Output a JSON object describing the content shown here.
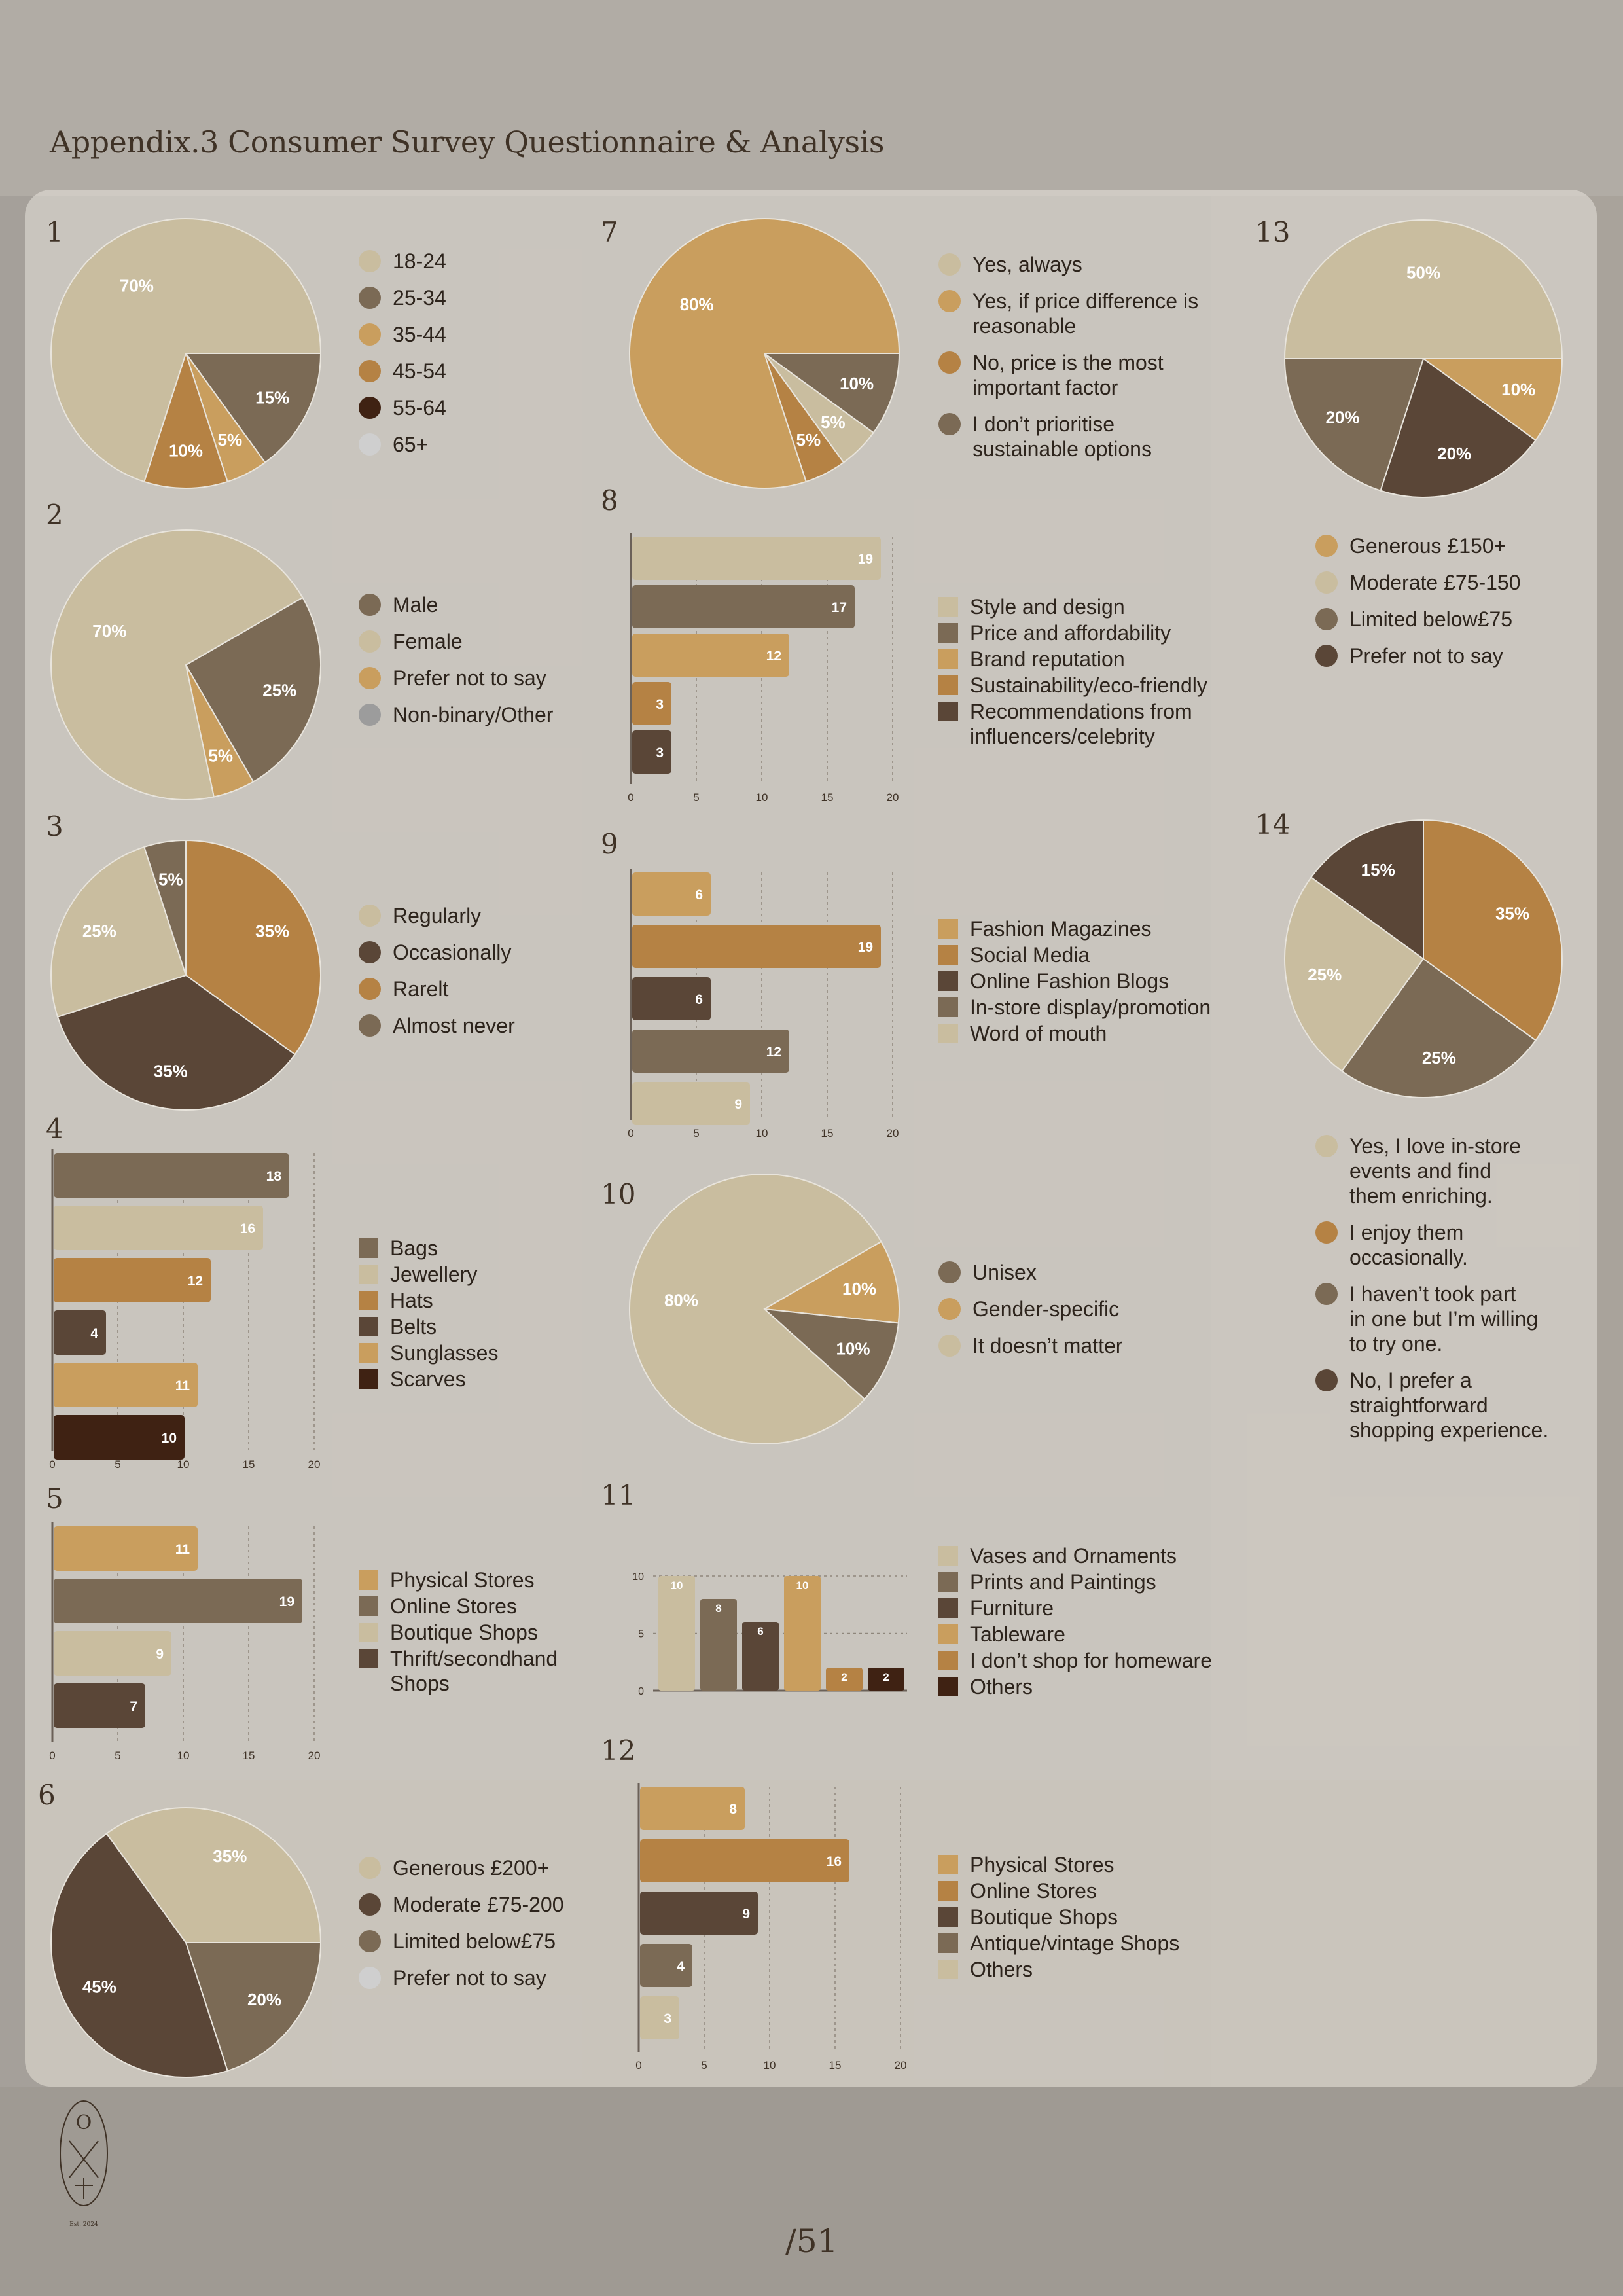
{
  "title": "Appendix.3 Consumer Survey Questionnaire & Analysis",
  "page_number": "/51",
  "logo": {
    "text": "OXAT",
    "tagline": "Est. 2024"
  },
  "colors": {
    "beige": "#c9bd9f",
    "taupe": "#7b6a55",
    "tan": "#c99e5e",
    "copper": "#b58244",
    "brown": "#5a4637",
    "dark": "#3f2213",
    "lightgrey": "#cfcfcf",
    "grey": "#9c9c9c"
  },
  "chart_data": [
    {
      "id": "1",
      "type": "pie",
      "labels": [
        "18-24",
        "25-34",
        "35-44",
        "45-54",
        "55-64",
        "65+"
      ],
      "values": [
        70,
        15,
        5,
        10,
        0,
        0
      ],
      "colors": [
        "#c9bd9f",
        "#7b6a55",
        "#c99e5e",
        "#b58244",
        "#3f2213",
        "#cfcfcf"
      ]
    },
    {
      "id": "2",
      "type": "pie",
      "labels": [
        "Male",
        "Female",
        "Prefer not to say",
        "Non-binary/Other"
      ],
      "values": [
        25,
        70,
        5,
        0
      ],
      "colors": [
        "#7b6a55",
        "#c9bd9f",
        "#c99e5e",
        "#9c9c9c"
      ]
    },
    {
      "id": "3",
      "type": "pie",
      "labels": [
        "Regularly",
        "Occasionally",
        "Rarelt",
        "Almost never"
      ],
      "values": [
        25,
        35,
        35,
        5
      ],
      "colors": [
        "#c9bd9f",
        "#5a4637",
        "#b58244",
        "#7b6a55"
      ]
    },
    {
      "id": "4",
      "type": "bar",
      "orientation": "horizontal",
      "categories": [
        "Bags",
        "Jewellery",
        "Hats",
        "Belts",
        "Sunglasses",
        "Scarves"
      ],
      "values": [
        18,
        16,
        12,
        4,
        11,
        10
      ],
      "xlim": [
        0,
        20
      ],
      "ticks": [
        0,
        5,
        10,
        15,
        20
      ],
      "colors": [
        "#7b6a55",
        "#c9bd9f",
        "#b58244",
        "#5a4637",
        "#c99e5e",
        "#3f2213"
      ]
    },
    {
      "id": "5",
      "type": "bar",
      "orientation": "horizontal",
      "categories": [
        "Physical Stores",
        "Online Stores",
        "Boutique Shops",
        "Thrift/secondhand\nShops"
      ],
      "values": [
        11,
        19,
        9,
        7
      ],
      "xlim": [
        0,
        20
      ],
      "ticks": [
        0,
        5,
        10,
        15,
        20
      ],
      "colors": [
        "#c99e5e",
        "#7b6a55",
        "#c9bd9f",
        "#5a4637"
      ]
    },
    {
      "id": "6",
      "type": "pie",
      "labels": [
        "Generous £200+",
        "Moderate £75-200",
        "Limited below£75",
        "Prefer not to say"
      ],
      "values": [
        35,
        45,
        20,
        0
      ],
      "colors": [
        "#c9bd9f",
        "#5a4637",
        "#7b6a55",
        "#cfcfcf"
      ]
    },
    {
      "id": "7",
      "type": "pie",
      "labels": [
        "Yes, always",
        "Yes, if price difference is\nreasonable",
        "No, price is the most\nimportant factor",
        "I don’t prioritise\nsustainable options"
      ],
      "values": [
        5,
        80,
        5,
        10
      ],
      "colors": [
        "#c9bd9f",
        "#c99e5e",
        "#b58244",
        "#7b6a55"
      ]
    },
    {
      "id": "8",
      "type": "bar",
      "orientation": "horizontal",
      "categories": [
        "Style and design",
        "Price and affordability",
        "Brand reputation",
        "Sustainability/eco-friendly",
        "Recommendations from\ninfluencers/celebrity"
      ],
      "values": [
        19,
        17,
        12,
        3,
        3
      ],
      "xlim": [
        0,
        20
      ],
      "ticks": [
        0,
        5,
        10,
        15,
        20
      ],
      "colors": [
        "#c9bd9f",
        "#7b6a55",
        "#c99e5e",
        "#b58244",
        "#5a4637"
      ]
    },
    {
      "id": "9",
      "type": "bar",
      "orientation": "horizontal",
      "categories": [
        "Fashion Magazines",
        "Social Media",
        "Online Fashion Blogs",
        "In-store display/promotion",
        "Word of mouth"
      ],
      "values": [
        6,
        19,
        6,
        12,
        9
      ],
      "xlim": [
        0,
        20
      ],
      "ticks": [
        0,
        5,
        10,
        15,
        20
      ],
      "colors": [
        "#c99e5e",
        "#b58244",
        "#5a4637",
        "#7b6a55",
        "#c9bd9f"
      ]
    },
    {
      "id": "10",
      "type": "pie",
      "labels": [
        "Unisex",
        "Gender-specific",
        "It doesn’t matter"
      ],
      "values": [
        10,
        10,
        80
      ],
      "colors": [
        "#7b6a55",
        "#c99e5e",
        "#c9bd9f"
      ]
    },
    {
      "id": "11",
      "type": "bar",
      "orientation": "vertical",
      "categories": [
        "Vases and Ornaments",
        "Prints and Paintings",
        "Furniture",
        "Tableware",
        "I don’t shop for homeware",
        "Others"
      ],
      "values": [
        10,
        8,
        6,
        10,
        2,
        2
      ],
      "ylim": [
        0,
        10
      ],
      "ticks": [
        0,
        5,
        10
      ],
      "colors": [
        "#c9bd9f",
        "#7b6a55",
        "#5a4637",
        "#c99e5e",
        "#b58244",
        "#3f2213"
      ]
    },
    {
      "id": "12",
      "type": "bar",
      "orientation": "horizontal",
      "categories": [
        "Physical Stores",
        "Online Stores",
        "Boutique Shops",
        "Antique/vintage Shops",
        "Others"
      ],
      "values": [
        8,
        16,
        9,
        4,
        3
      ],
      "xlim": [
        0,
        20
      ],
      "ticks": [
        0,
        5,
        10,
        15,
        20
      ],
      "colors": [
        "#c99e5e",
        "#b58244",
        "#5a4637",
        "#7b6a55",
        "#c9bd9f"
      ]
    },
    {
      "id": "13",
      "type": "pie",
      "labels": [
        "Generous £150+",
        "Moderate £75-150",
        "Limited below£75",
        "Prefer not to say"
      ],
      "values": [
        10,
        50,
        20,
        20
      ],
      "colors": [
        "#c99e5e",
        "#c9bd9f",
        "#7b6a55",
        "#5a4637"
      ]
    },
    {
      "id": "14",
      "type": "pie",
      "labels": [
        "Yes, I love in-store\nevents and find\nthem enriching.",
        "I enjoy them\noccasionally.",
        "I haven’t took part\nin one but I’m willing\nto try one.",
        "No, I prefer a\nstraightforward\nshopping experience."
      ],
      "values": [
        25,
        35,
        25,
        15
      ],
      "colors": [
        "#c9bd9f",
        "#b58244",
        "#7b6a55",
        "#5a4637"
      ]
    }
  ]
}
